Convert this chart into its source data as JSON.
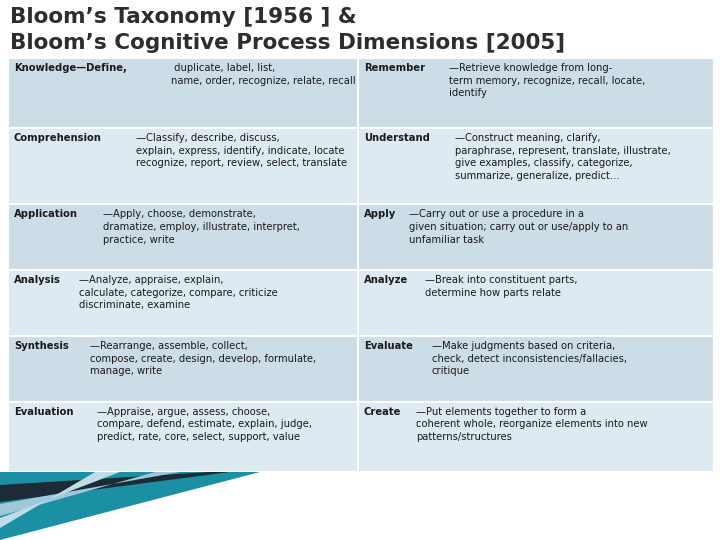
{
  "title_line1": "Bloom’s Taxonomy [1956 ] &",
  "title_line2": "Bloom’s Cognitive Process Dimensions [2005]",
  "title_color": "#2d2d2d",
  "title_fontsize": 15.5,
  "bg_color": "#ffffff",
  "table_row_odd_bg": "#cddde8",
  "table_row_even_bg": "#ddeaf2",
  "cell_text_color": "#1a1a1a",
  "rows": [
    {
      "left_bold": "Knowledge—Define,",
      "left_rest": " duplicate, label, list,\nname, order, recognize, relate, recall",
      "right_bold": "Remember",
      "right_rest": "—Retrieve knowledge from long-\nterm memory, recognize, recall, locate,\nidentify"
    },
    {
      "left_bold": "Comprehension",
      "left_rest": "—Classify, describe, discuss,\nexplain, express, identify, indicate, locate\nrecognize, report, review, select, translate",
      "right_bold": "Understand",
      "right_rest": "—Construct meaning, clarify,\nparaphrase, represent, translate, illustrate,\ngive examples, classify, categorize,\nsummarize, generalize, predict…"
    },
    {
      "left_bold": "Application",
      "left_rest": "—Apply, choose, demonstrate,\ndramatize, employ, illustrate, interpret,\npractice, write",
      "right_bold": "Apply",
      "right_rest": "—Carry out or use a procedure in a\ngiven situation; carry out or use/apply to an\nunfamiliar task"
    },
    {
      "left_bold": "Analysis",
      "left_rest": "—Analyze, appraise, explain,\ncalculate, categorize, compare, criticize\ndiscriminate, examine",
      "right_bold": "Analyze",
      "right_rest": "—Break into constituent parts,\ndetermine how parts relate"
    },
    {
      "left_bold": "Synthesis",
      "left_rest": "—Rearrange, assemble, collect,\ncompose, create, design, develop, formulate,\nmanage, write",
      "right_bold": "Evaluate",
      "right_rest": "—Make judgments based on criteria,\ncheck, detect inconsistencies/fallacies,\ncritique"
    },
    {
      "left_bold": "Evaluation",
      "left_rest": "—Appraise, argue, assess, choose,\ncompare, defend, estimate, explain, judge,\npredict, rate, core, select, support, value",
      "right_bold": "Create",
      "right_rest": "—Put elements together to form a\ncoherent whole, reorganize elements into new\npatterns/structures"
    }
  ],
  "bottom_decoration": {
    "teal_color": "#1b8fa3",
    "dark_color": "#1c2b35",
    "light_color": "#a0c8d8",
    "lighter_color": "#c0dce8"
  }
}
